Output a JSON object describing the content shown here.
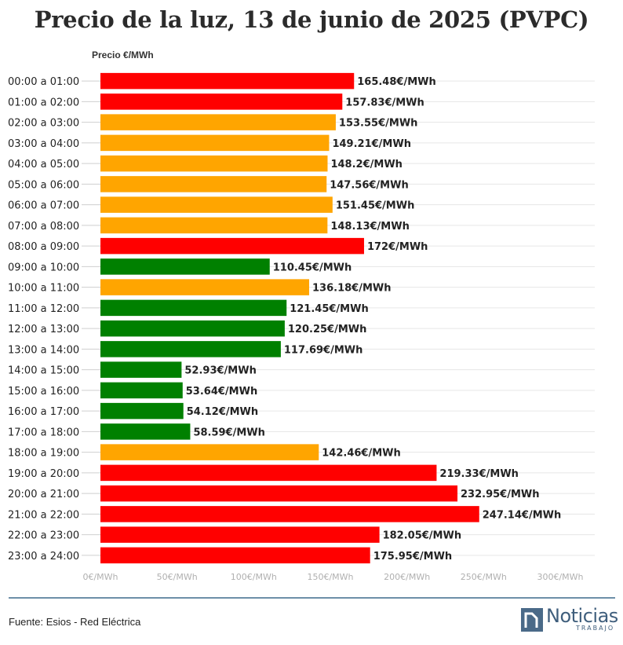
{
  "title": "Precio de la luz, 13 de junio de 2025 (PVPC)",
  "source": "Fuente: Esios - Red Eléctrica",
  "logo": {
    "word": "Noticias",
    "sub": "TRABAJO"
  },
  "colors": {
    "high": "#ff0000",
    "mid": "#ffa500",
    "low": "#008000",
    "grid": "#e6e6e6",
    "rule": "#6d8fa8"
  },
  "chart_data": {
    "type": "bar",
    "orientation": "horizontal",
    "ylabel": "Precio €/MWh",
    "value_suffix": "€/MWh",
    "xlim": [
      0,
      300
    ],
    "xticks": [
      "0€/MWh",
      "50€/MWh",
      "100€/MWh",
      "150€/MWh",
      "200€/MWh",
      "250€/MWh",
      "300€/MWh"
    ],
    "grid": true,
    "categories": [
      "00:00 a 01:00",
      "01:00 a 02:00",
      "02:00 a 03:00",
      "03:00 a 04:00",
      "04:00 a 05:00",
      "05:00 a 06:00",
      "06:00 a 07:00",
      "07:00 a 08:00",
      "08:00 a 09:00",
      "09:00 a 10:00",
      "10:00 a 11:00",
      "11:00 a 12:00",
      "12:00 a 13:00",
      "13:00 a 14:00",
      "14:00 a 15:00",
      "15:00 a 16:00",
      "16:00 a 17:00",
      "17:00 a 18:00",
      "18:00 a 19:00",
      "19:00 a 20:00",
      "20:00 a 21:00",
      "21:00 a 22:00",
      "22:00 a 23:00",
      "23:00 a 24:00"
    ],
    "values": [
      165.48,
      157.83,
      153.55,
      149.21,
      148.2,
      147.56,
      151.45,
      148.13,
      172,
      110.45,
      136.18,
      121.45,
      120.25,
      117.69,
      52.93,
      53.64,
      54.12,
      58.59,
      142.46,
      219.33,
      232.95,
      247.14,
      182.05,
      175.95
    ],
    "value_labels": [
      "165.48€/MWh",
      "157.83€/MWh",
      "153.55€/MWh",
      "149.21€/MWh",
      "148.2€/MWh",
      "147.56€/MWh",
      "151.45€/MWh",
      "148.13€/MWh",
      "172€/MWh",
      "110.45€/MWh",
      "136.18€/MWh",
      "121.45€/MWh",
      "120.25€/MWh",
      "117.69€/MWh",
      "52.93€/MWh",
      "53.64€/MWh",
      "54.12€/MWh",
      "58.59€/MWh",
      "142.46€/MWh",
      "219.33€/MWh",
      "232.95€/MWh",
      "247.14€/MWh",
      "182.05€/MWh",
      "175.95€/MWh"
    ],
    "levels": [
      "high",
      "high",
      "mid",
      "mid",
      "mid",
      "mid",
      "mid",
      "mid",
      "high",
      "low",
      "mid",
      "low",
      "low",
      "low",
      "low",
      "low",
      "low",
      "low",
      "mid",
      "high",
      "high",
      "high",
      "high",
      "high"
    ]
  }
}
